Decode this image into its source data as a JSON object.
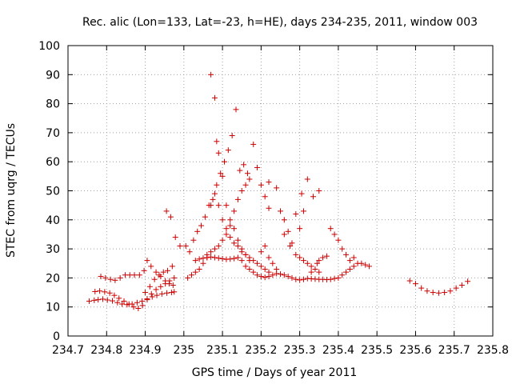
{
  "chart_data": {
    "type": "scatter",
    "title": "Rec. alic (Lon=133, Lat=-23, h=HE), days 234-235, 2011, window 003",
    "xlabel": "GPS time / Days of year 2011",
    "ylabel": "STEC from uqrg / TECUs",
    "xlim": [
      234.7,
      235.8
    ],
    "ylim": [
      0,
      100
    ],
    "xticks": [
      "234.7",
      "234.8",
      "234.9",
      "235",
      "235.1",
      "235.2",
      "235.3",
      "235.4",
      "235.5",
      "235.6",
      "235.7",
      "235.8"
    ],
    "yticks": [
      "0",
      "10",
      "20",
      "30",
      "40",
      "50",
      "60",
      "70",
      "80",
      "90",
      "100"
    ],
    "grid": true,
    "marker": "+",
    "color": "#cc0000",
    "series": [
      {
        "name": "",
        "points": [
          [
            234.755,
            12
          ],
          [
            234.768,
            12.3
          ],
          [
            234.778,
            12.5
          ],
          [
            234.79,
            12.7
          ],
          [
            234.802,
            12.4
          ],
          [
            234.815,
            12.1
          ],
          [
            234.828,
            11.5
          ],
          [
            234.84,
            11
          ],
          [
            234.853,
            10.8
          ],
          [
            234.866,
            11
          ],
          [
            234.879,
            11.5
          ],
          [
            234.892,
            12
          ],
          [
            234.905,
            12.8
          ],
          [
            234.918,
            13.5
          ],
          [
            234.93,
            14
          ],
          [
            234.943,
            14.5
          ],
          [
            234.956,
            14.8
          ],
          [
            234.968,
            15
          ],
          [
            234.975,
            15.2
          ],
          [
            234.77,
            15.3
          ],
          [
            234.782,
            15.5
          ],
          [
            234.795,
            15.2
          ],
          [
            234.808,
            14.8
          ],
          [
            234.82,
            14
          ],
          [
            234.832,
            13
          ],
          [
            234.845,
            12
          ],
          [
            234.858,
            11
          ],
          [
            234.87,
            10
          ],
          [
            234.882,
            9.5
          ],
          [
            234.893,
            10.5
          ],
          [
            234.905,
            12.5
          ],
          [
            234.916,
            14.5
          ],
          [
            234.928,
            16
          ],
          [
            234.94,
            17
          ],
          [
            234.952,
            18
          ],
          [
            234.963,
            19
          ],
          [
            234.975,
            20
          ],
          [
            234.785,
            20.5
          ],
          [
            234.797,
            20
          ],
          [
            234.81,
            19.5
          ],
          [
            234.822,
            19.2
          ],
          [
            234.835,
            20
          ],
          [
            234.848,
            21
          ],
          [
            234.86,
            21
          ],
          [
            234.872,
            21
          ],
          [
            234.885,
            21
          ],
          [
            234.897,
            22.5
          ],
          [
            234.905,
            26
          ],
          [
            234.915,
            24
          ],
          [
            234.928,
            22
          ],
          [
            234.94,
            20.5
          ],
          [
            234.952,
            19
          ],
          [
            234.962,
            18
          ],
          [
            234.972,
            17.5
          ],
          [
            234.9,
            15
          ],
          [
            234.912,
            17
          ],
          [
            234.924,
            19.5
          ],
          [
            234.936,
            21
          ],
          [
            234.947,
            22
          ],
          [
            234.958,
            22.5
          ],
          [
            234.97,
            24
          ],
          [
            234.955,
            43
          ],
          [
            234.966,
            41
          ],
          [
            234.978,
            34
          ],
          [
            234.99,
            31
          ],
          [
            235.01,
            20
          ],
          [
            235.02,
            21
          ],
          [
            235.03,
            22
          ],
          [
            235.04,
            23
          ],
          [
            235.05,
            25
          ],
          [
            235.005,
            31
          ],
          [
            235.015,
            29
          ],
          [
            235.025,
            33
          ],
          [
            235.035,
            36
          ],
          [
            235.045,
            38
          ],
          [
            235.055,
            41
          ],
          [
            235.065,
            45
          ],
          [
            235.075,
            47
          ],
          [
            235.085,
            52
          ],
          [
            235.095,
            56
          ],
          [
            235.105,
            60
          ],
          [
            235.115,
            64
          ],
          [
            235.125,
            69
          ],
          [
            235.135,
            78
          ],
          [
            235.145,
            57
          ],
          [
            235.155,
            59
          ],
          [
            235.165,
            56
          ],
          [
            235.06,
            27
          ],
          [
            235.07,
            90
          ],
          [
            235.08,
            82
          ],
          [
            235.085,
            67
          ],
          [
            235.09,
            63
          ],
          [
            235.1,
            55
          ],
          [
            235.11,
            45
          ],
          [
            235.12,
            40
          ],
          [
            235.13,
            37
          ],
          [
            235.14,
            33
          ],
          [
            235.15,
            30
          ],
          [
            235.16,
            28
          ],
          [
            235.17,
            26
          ],
          [
            235.06,
            28
          ],
          [
            235.07,
            29
          ],
          [
            235.08,
            30
          ],
          [
            235.09,
            31
          ],
          [
            235.1,
            33
          ],
          [
            235.11,
            35
          ],
          [
            235.12,
            38
          ],
          [
            235.13,
            43
          ],
          [
            235.14,
            47
          ],
          [
            235.15,
            50
          ],
          [
            235.16,
            52
          ],
          [
            235.17,
            54
          ],
          [
            235.18,
            66
          ],
          [
            235.19,
            58
          ],
          [
            235.2,
            52
          ],
          [
            235.21,
            48
          ],
          [
            235.22,
            44
          ],
          [
            235.07,
            45
          ],
          [
            235.08,
            49
          ],
          [
            235.09,
            45
          ],
          [
            235.1,
            40
          ],
          [
            235.11,
            37
          ],
          [
            235.12,
            34
          ],
          [
            235.13,
            32
          ],
          [
            235.14,
            31
          ],
          [
            235.15,
            29
          ],
          [
            235.16,
            28
          ],
          [
            235.17,
            27
          ],
          [
            235.18,
            26
          ],
          [
            235.19,
            25
          ],
          [
            235.2,
            24
          ],
          [
            235.21,
            23
          ],
          [
            235.22,
            22
          ],
          [
            235.03,
            26
          ],
          [
            235.04,
            26.5
          ],
          [
            235.05,
            26.8
          ],
          [
            235.06,
            27
          ],
          [
            235.07,
            27.2
          ],
          [
            235.08,
            27
          ],
          [
            235.09,
            26.8
          ],
          [
            235.1,
            26.6
          ],
          [
            235.11,
            26.4
          ],
          [
            235.12,
            26.5
          ],
          [
            235.13,
            26.7
          ],
          [
            235.14,
            27
          ],
          [
            235.15,
            26
          ],
          [
            235.16,
            24
          ],
          [
            235.17,
            23
          ],
          [
            235.18,
            22
          ],
          [
            235.19,
            21
          ],
          [
            235.2,
            20.5
          ],
          [
            235.21,
            20.2
          ],
          [
            235.22,
            20.5
          ],
          [
            235.23,
            21
          ],
          [
            235.24,
            21.5
          ],
          [
            235.25,
            21.3
          ],
          [
            235.26,
            21
          ],
          [
            235.27,
            20.5
          ],
          [
            235.28,
            20
          ],
          [
            235.29,
            19.5
          ],
          [
            235.3,
            19.3
          ],
          [
            235.31,
            19.5
          ],
          [
            235.32,
            19.8
          ],
          [
            235.33,
            19.7
          ],
          [
            235.34,
            19.6
          ],
          [
            235.35,
            19.5
          ],
          [
            235.36,
            19.5
          ],
          [
            235.37,
            19.4
          ],
          [
            235.38,
            19.5
          ],
          [
            235.39,
            19.8
          ],
          [
            235.4,
            20
          ],
          [
            235.41,
            21
          ],
          [
            235.42,
            22
          ],
          [
            235.43,
            23
          ],
          [
            235.44,
            24
          ],
          [
            235.45,
            25
          ],
          [
            235.46,
            25
          ],
          [
            235.47,
            24.5
          ],
          [
            235.48,
            24
          ],
          [
            235.2,
            29
          ],
          [
            235.21,
            31
          ],
          [
            235.22,
            27
          ],
          [
            235.23,
            25
          ],
          [
            235.24,
            23
          ],
          [
            235.25,
            43
          ],
          [
            235.26,
            40
          ],
          [
            235.27,
            36
          ],
          [
            235.28,
            32
          ],
          [
            235.29,
            28
          ],
          [
            235.3,
            27
          ],
          [
            235.31,
            26
          ],
          [
            235.32,
            25
          ],
          [
            235.33,
            24
          ],
          [
            235.34,
            23
          ],
          [
            235.35,
            22
          ],
          [
            235.22,
            53
          ],
          [
            235.24,
            51
          ],
          [
            235.26,
            35
          ],
          [
            235.275,
            31
          ],
          [
            235.29,
            42
          ],
          [
            235.305,
            49
          ],
          [
            235.32,
            54
          ],
          [
            235.335,
            48
          ],
          [
            235.35,
            50
          ],
          [
            235.3,
            37
          ],
          [
            235.31,
            43
          ],
          [
            235.33,
            22
          ],
          [
            235.345,
            25
          ],
          [
            235.38,
            37
          ],
          [
            235.39,
            35
          ],
          [
            235.4,
            33
          ],
          [
            235.41,
            30
          ],
          [
            235.42,
            28
          ],
          [
            235.43,
            26
          ],
          [
            235.44,
            27
          ],
          [
            235.35,
            26
          ],
          [
            235.36,
            27
          ],
          [
            235.37,
            27.5
          ],
          [
            235.585,
            19
          ],
          [
            235.6,
            18
          ],
          [
            235.615,
            16.5
          ],
          [
            235.63,
            15.5
          ],
          [
            235.645,
            15
          ],
          [
            235.66,
            14.8
          ],
          [
            235.675,
            15
          ],
          [
            235.69,
            15.5
          ],
          [
            235.705,
            16.5
          ],
          [
            235.72,
            17.5
          ],
          [
            235.735,
            18.8
          ]
        ]
      }
    ]
  }
}
